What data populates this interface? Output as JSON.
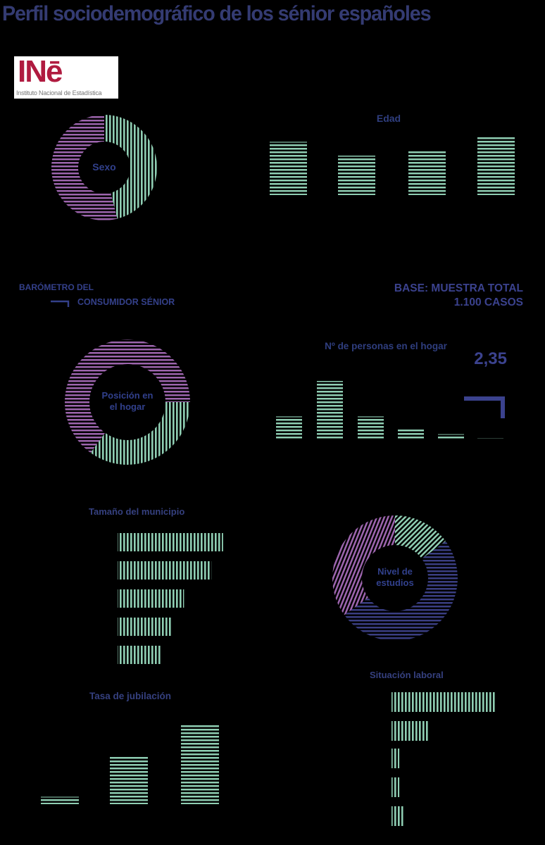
{
  "page": {
    "title": "Perfil sociodemográfico de los sénior españoles"
  },
  "logo": {
    "brand": "INē",
    "caption": "Instituto Nacional de Estadística"
  },
  "source_note": {
    "line1": "BARÓMETRO DEL",
    "line2": "CONSUMIDOR SÉNIOR"
  },
  "base_note": {
    "line1": "BASE: MUESTRA TOTAL",
    "line2": "1.100 CASOS"
  },
  "colors": {
    "background": "#000000",
    "navy": "#34408a",
    "navy_accent": "#3b428e",
    "green": "#8fceb3",
    "purple": "#9d65ae",
    "navy_hatch": "#3a3e82",
    "crimson": "#b01b40",
    "logo_bg": "#ffffff",
    "logo_caption_gray": "#777777"
  },
  "chart_data": [
    {
      "id": "sexo",
      "type": "pie",
      "subtype": "donut",
      "center_label": [
        "Sexo"
      ],
      "start_angle_deg": 0,
      "segments": [
        {
          "name": "segment-green",
          "value_pct": 46,
          "color": "#8fceb3",
          "hatch": "vertical"
        },
        {
          "name": "segment-purple",
          "value_pct": 54,
          "color": "#9d65ae",
          "hatch": "horizontal"
        }
      ]
    },
    {
      "id": "edad",
      "type": "bar",
      "orientation": "vertical",
      "title": "Edad",
      "values_pct": [
        27,
        20,
        23,
        30
      ],
      "bar_color": "#8fceb3",
      "hatch": "horizontal"
    },
    {
      "id": "posicion",
      "type": "pie",
      "subtype": "donut",
      "center_label": [
        "Posición en",
        "el hogar"
      ],
      "start_angle_deg": 90,
      "segments": [
        {
          "name": "segment-green",
          "value_pct": 35,
          "color": "#8fceb3",
          "hatch": "vertical"
        },
        {
          "name": "segment-purple",
          "value_pct": 65,
          "color": "#9d65ae",
          "hatch": "horizontal"
        }
      ]
    },
    {
      "id": "personas",
      "type": "bar",
      "orientation": "vertical",
      "title": "Nº de personas en el hogar",
      "values_pct": [
        12,
        30,
        12,
        6,
        3,
        1
      ],
      "bar_color": "#8fceb3",
      "hatch": "horizontal",
      "annotation": {
        "label": "2,35"
      }
    },
    {
      "id": "municipio",
      "type": "bar",
      "orientation": "horizontal",
      "title": "Tamaño del municipio",
      "values_pct": [
        27,
        24,
        17,
        14,
        11
      ],
      "bar_color": "#8fceb3",
      "hatch": "vertical"
    },
    {
      "id": "estudios",
      "type": "pie",
      "subtype": "donut",
      "center_label": [
        "Nivel de",
        "estudios"
      ],
      "start_angle_deg": 0,
      "segments": [
        {
          "name": "segment-green",
          "value_pct": 15,
          "color": "#8fceb3",
          "hatch": "diagonal"
        },
        {
          "name": "segment-navy",
          "value_pct": 50,
          "color": "#3a3e82",
          "hatch": "horizontal"
        },
        {
          "name": "segment-purple",
          "value_pct": 35,
          "color": "#9d65ae",
          "hatch": "diagonal-steep"
        }
      ]
    },
    {
      "id": "laboral",
      "type": "bar",
      "orientation": "horizontal",
      "title": "Situación laboral",
      "values_pct": [
        53,
        19,
        4,
        4,
        6
      ],
      "bar_color": "#8fceb3",
      "hatch": "vertical"
    },
    {
      "id": "jubilacion",
      "type": "bar",
      "orientation": "vertical",
      "title": "Tasa de jubilación",
      "values_pct": [
        7,
        46,
        75
      ],
      "bar_color": "#8fceb3",
      "hatch": "horizontal"
    }
  ]
}
